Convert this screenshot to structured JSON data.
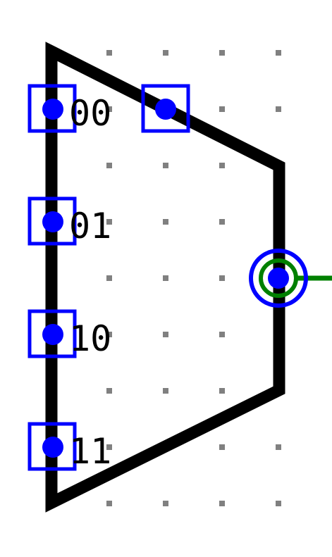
{
  "mux": {
    "inputs": [
      {
        "label": "00"
      },
      {
        "label": "01"
      },
      {
        "label": "10"
      },
      {
        "label": "11"
      }
    ],
    "select_pin": {
      "icon": "select-pin-icon"
    },
    "output_pin": {
      "icon": "output-pin-icon"
    }
  },
  "colors": {
    "body_stroke": "#000000",
    "pin_dot": "#0000ff",
    "pin_box": "#0000ff",
    "output_ring_outer": "#0000ff",
    "output_ring_inner": "#008000",
    "output_wire": "#008000",
    "grid_dot": "#808080",
    "background": "#ffffff"
  }
}
